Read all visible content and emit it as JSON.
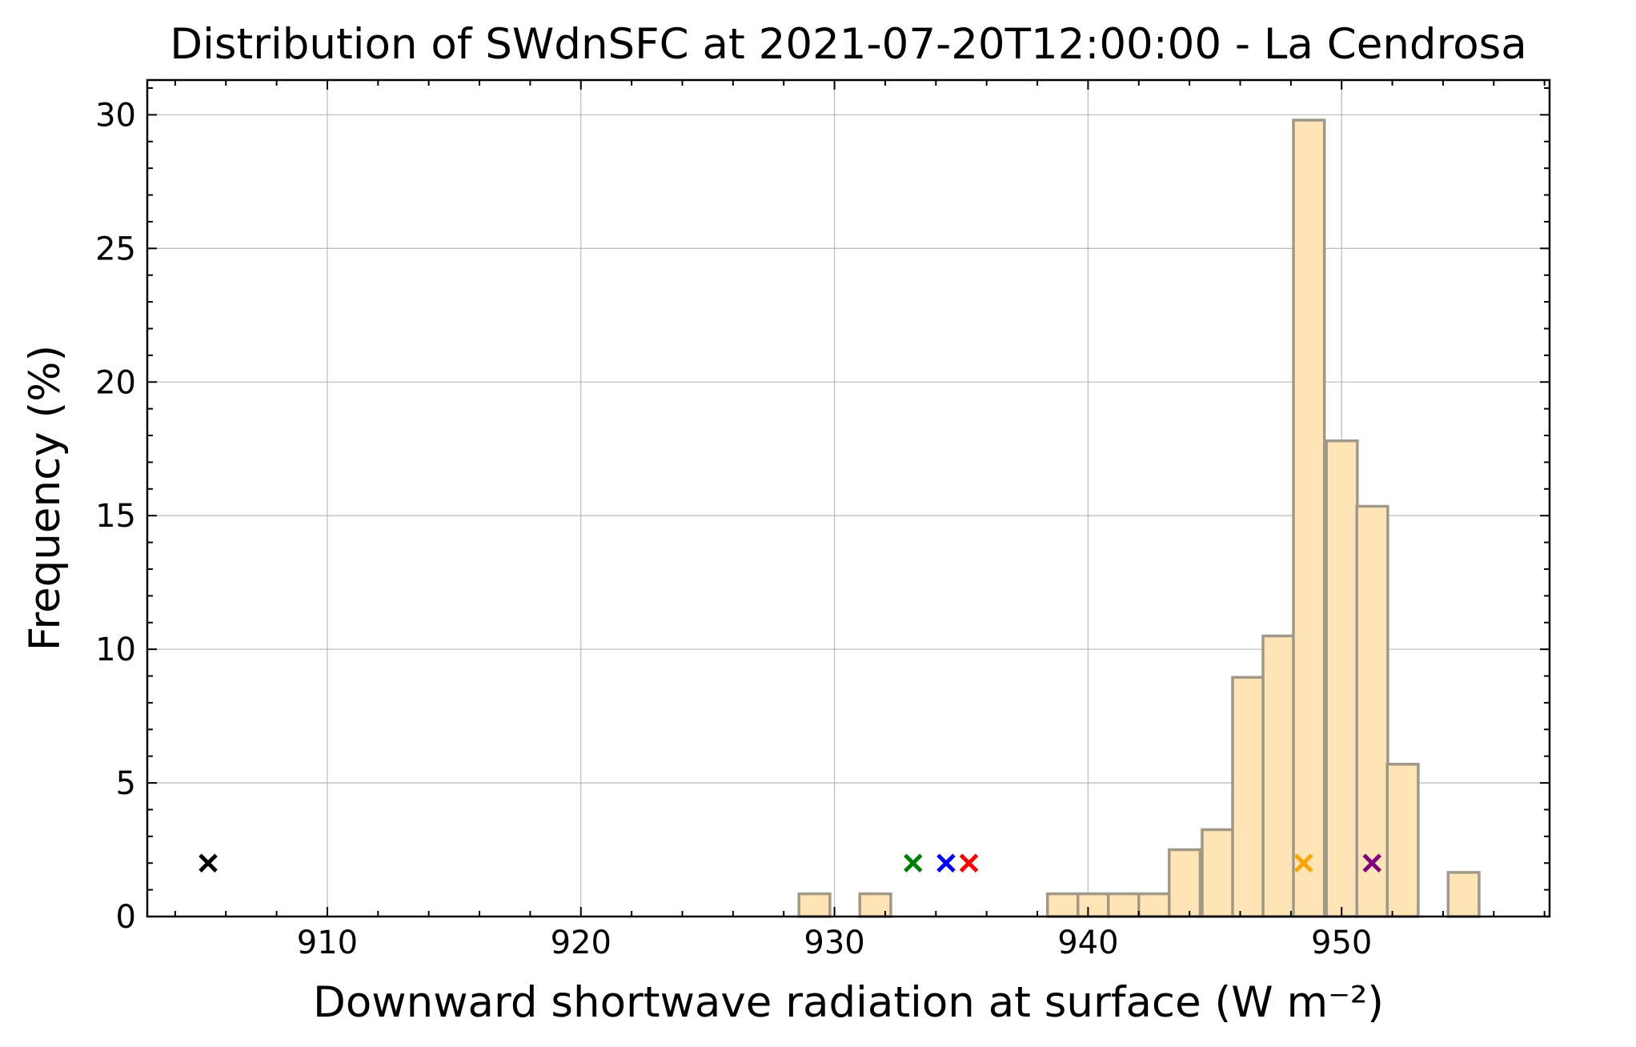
{
  "chart_data": {
    "type": "bar",
    "title": "Distribution of SWdnSFC at 2021-07-20T12:00:00 - La Cendrosa",
    "xlabel": "Downward shortwave radiation at surface (W m⁻²)",
    "ylabel": "Frequency (%)",
    "xlim": [
      902.9,
      958.2
    ],
    "ylim": [
      0,
      31.3
    ],
    "xticks": [
      910,
      920,
      930,
      940,
      950
    ],
    "yticks": [
      0,
      5,
      10,
      15,
      20,
      25,
      30
    ],
    "grid": true,
    "bin_width": 1.22,
    "bar_color": "#ffe4b5",
    "bar_edge_color": "#a09888",
    "bins": [
      {
        "x0": 928.6,
        "value": 0.85
      },
      {
        "x0": 931.0,
        "value": 0.85
      },
      {
        "x0": 938.4,
        "value": 0.85
      },
      {
        "x0": 939.6,
        "value": 0.85
      },
      {
        "x0": 940.8,
        "value": 0.85
      },
      {
        "x0": 942.0,
        "value": 0.85
      },
      {
        "x0": 943.2,
        "value": 2.5
      },
      {
        "x0": 944.5,
        "value": 3.25
      },
      {
        "x0": 945.7,
        "value": 8.95
      },
      {
        "x0": 946.9,
        "value": 10.5
      },
      {
        "x0": 948.1,
        "value": 29.8
      },
      {
        "x0": 949.4,
        "value": 17.8
      },
      {
        "x0": 950.6,
        "value": 15.35
      },
      {
        "x0": 951.8,
        "value": 5.7
      },
      {
        "x0": 954.2,
        "value": 1.65
      }
    ],
    "markers": [
      {
        "x": 905.3,
        "y": 2.0,
        "color": "#000000"
      },
      {
        "x": 933.1,
        "y": 2.0,
        "color": "#008000"
      },
      {
        "x": 934.4,
        "y": 2.0,
        "color": "#0000ff"
      },
      {
        "x": 935.3,
        "y": 2.0,
        "color": "#ff0000"
      },
      {
        "x": 948.5,
        "y": 2.0,
        "color": "#ffa500"
      },
      {
        "x": 951.2,
        "y": 2.0,
        "color": "#800080"
      }
    ]
  }
}
